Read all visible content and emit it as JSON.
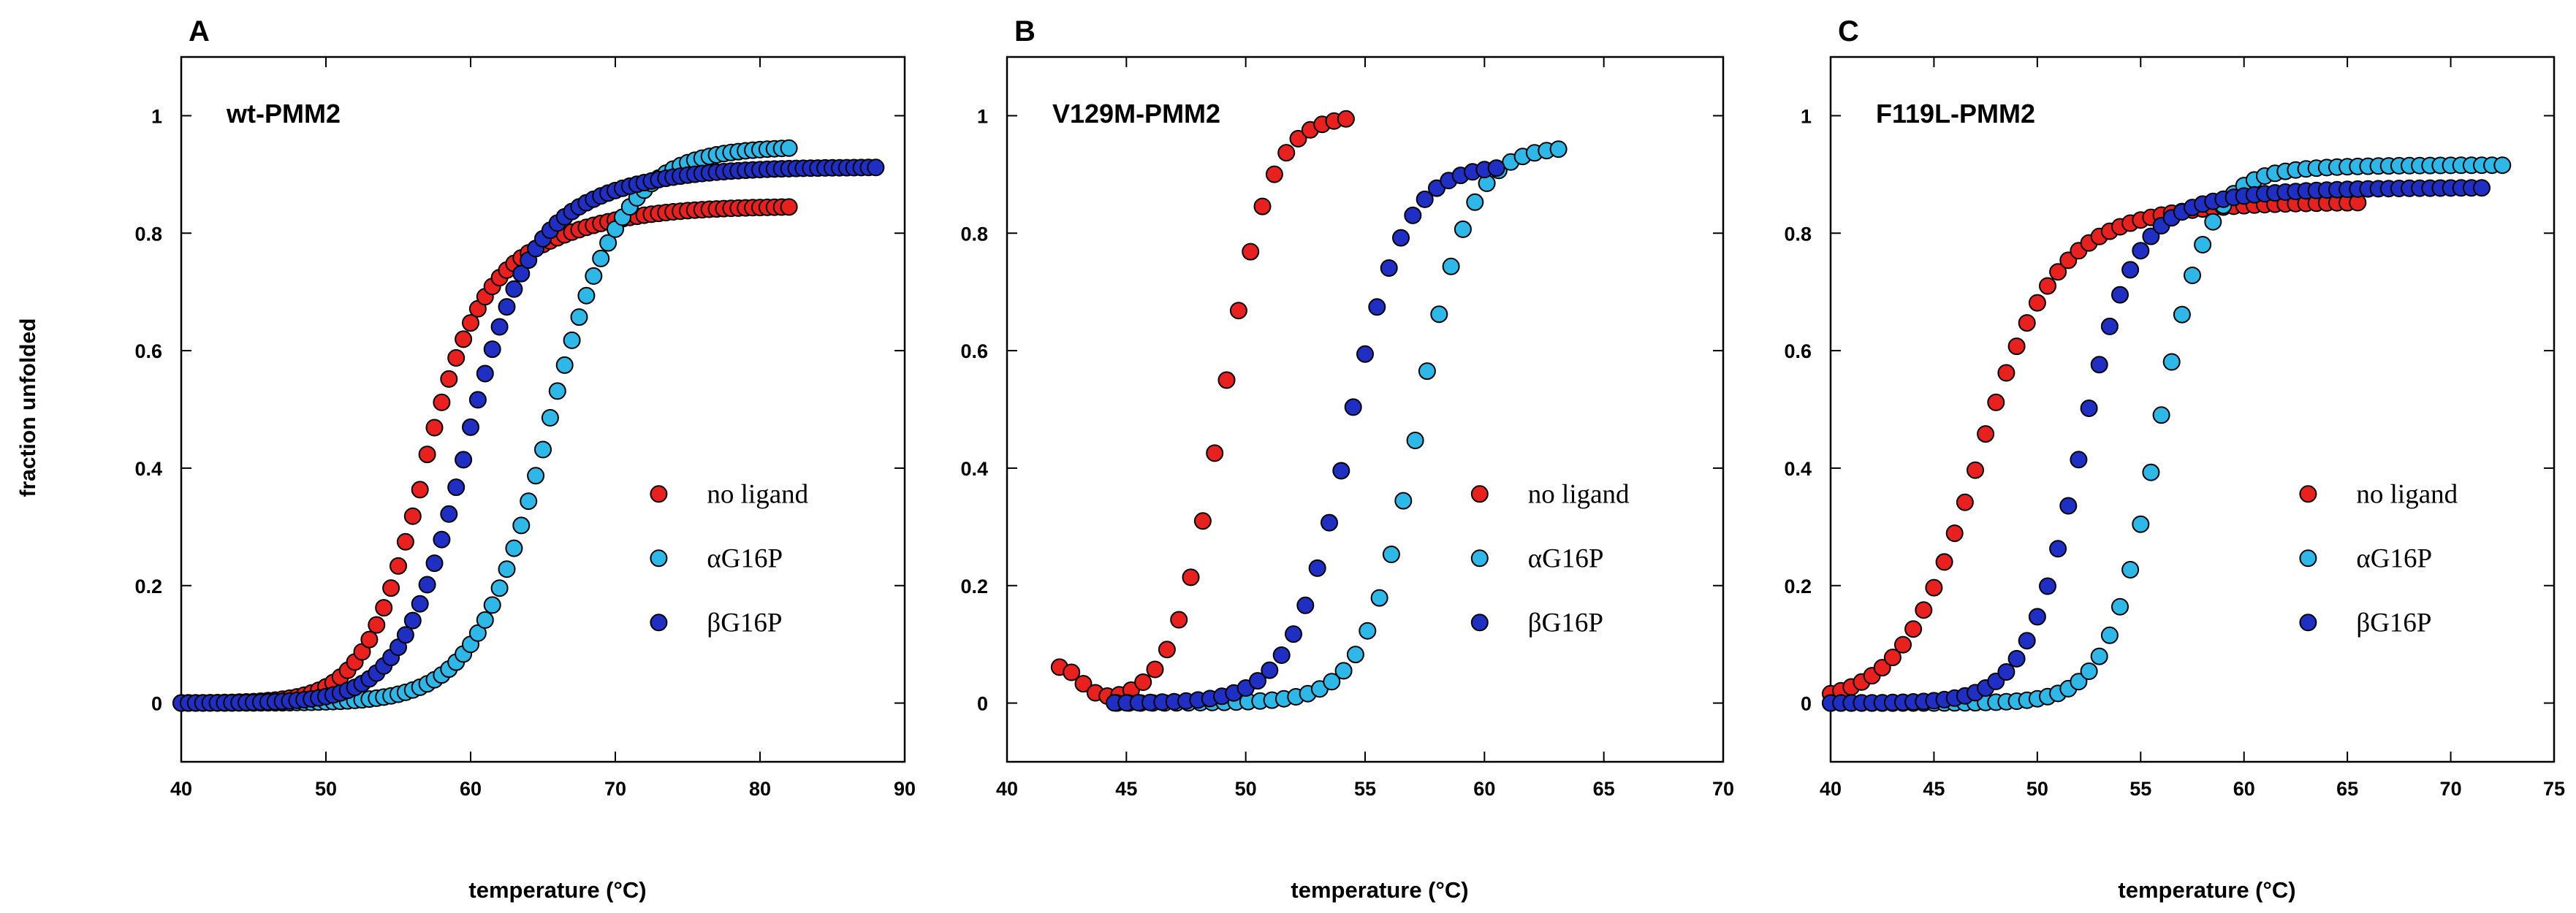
{
  "colors": {
    "no_ligand": "#e8201e",
    "aG16P": "#2eb8e8",
    "bG16P": "#1f2fc4",
    "frame": "#000000"
  },
  "shared": {
    "ylabel": "fraction unfolded",
    "xlabel": "temperature (°C)",
    "legend": [
      "no ligand",
      "αG16P",
      "βG16P"
    ]
  },
  "chart_data": [
    {
      "type": "scatter",
      "panel_letter": "A",
      "label": "wt-PMM2",
      "xlabel": "temperature (°C)",
      "ylabel": "fraction unfolded",
      "xlim": [
        40,
        90
      ],
      "ylim": [
        -0.1,
        1.1
      ],
      "xticks": [
        40,
        50,
        60,
        70,
        80,
        90
      ],
      "yticks": [
        0,
        0.2,
        0.4,
        0.6,
        0.8,
        1
      ],
      "legend_position": "bottom-right",
      "series": [
        {
          "name": "no ligand",
          "color_key": "no_ligand",
          "tm": 56.5,
          "w": 2.0,
          "floor": 0.0,
          "b1": 0.8,
          "a2": 0.45,
          "c2": 64.0,
          "w2": 4.0,
          "xstart": 40,
          "xend": 82,
          "step": 0.5,
          "lowmin": 44
        },
        {
          "name": "αG16P",
          "color_key": "aG16P",
          "tm": 65.2,
          "w": 2.5,
          "floor": 0.0,
          "b1": 0.3,
          "a2": 0.5,
          "c2": 70.0,
          "w2": 3.5,
          "xstart": 40,
          "xend": 82,
          "step": 0.5,
          "lowmin": 44
        },
        {
          "name": "βG16P",
          "color_key": "bG16P",
          "tm": 59.5,
          "w": 2.2,
          "floor": 0.0,
          "b1": 0.5,
          "a2": 0.5,
          "c2": 68.0,
          "w2": 4.0,
          "xstart": 40,
          "xend": 88,
          "step": 0.5,
          "lowmin": 44
        }
      ]
    },
    {
      "type": "scatter",
      "panel_letter": "B",
      "label": "V129M-PMM2",
      "xlabel": "temperature (°C)",
      "ylabel": "fraction unfolded",
      "xlim": [
        40,
        70
      ],
      "ylim": [
        -0.1,
        1.1
      ],
      "xticks": [
        40,
        45,
        50,
        55,
        60,
        65,
        70
      ],
      "yticks": [
        0,
        0.2,
        0.4,
        0.6,
        0.8,
        1
      ],
      "legend_position": "bottom-right",
      "series": [
        {
          "name": "no ligand",
          "color_key": "no_ligand",
          "tm": 49.0,
          "w": 1.0,
          "floor": 0.0,
          "b1": 0.0,
          "a2": 0.0,
          "c2": 50,
          "w2": 1,
          "xstart": 42.2,
          "xend": 54.2,
          "step": 0.5,
          "lowmin": 44,
          "dip": 0.06
        },
        {
          "name": "αG16P",
          "color_key": "aG16P",
          "tm": 57.2,
          "w": 1.1,
          "floor": 0.0,
          "b1": 0.2,
          "a2": 0.25,
          "c2": 52.0,
          "w2": 2.0,
          "xstart": 44.6,
          "xend": 63.2,
          "step": 0.5,
          "lowmin": 46
        },
        {
          "name": "βG16P",
          "color_key": "bG16P",
          "tm": 54.3,
          "w": 1.2,
          "floor": 0.0,
          "b1": 0.3,
          "a2": 0.2,
          "c2": 51.0,
          "w2": 1.5,
          "xstart": 44.5,
          "xend": 60.9,
          "step": 0.5,
          "lowmin": 46
        }
      ]
    },
    {
      "type": "scatter",
      "panel_letter": "C",
      "label": "F119L-PMM2",
      "xlabel": "temperature (°C)",
      "ylabel": "fraction unfolded",
      "xlim": [
        40,
        75
      ],
      "ylim": [
        -0.1,
        1.1
      ],
      "xticks": [
        40,
        45,
        50,
        55,
        60,
        65,
        70,
        75
      ],
      "yticks": [
        0,
        0.2,
        0.4,
        0.6,
        0.8,
        1
      ],
      "legend_position": "bottom-right",
      "series": [
        {
          "name": "no ligand",
          "color_key": "no_ligand",
          "tm": 47.0,
          "w": 1.8,
          "floor": 0.0,
          "b1": 0.6,
          "a2": 0.3,
          "c2": 53.0,
          "w2": 3.0,
          "xstart": 40,
          "xend": 65.5,
          "step": 0.5,
          "lowmin": 40
        },
        {
          "name": "αG16P",
          "color_key": "aG16P",
          "tm": 55.8,
          "w": 1.2,
          "floor": 0.0,
          "b1": 0.3,
          "a2": 0.2,
          "c2": 59.0,
          "w2": 3.0,
          "xstart": 40,
          "xend": 72.5,
          "step": 0.5,
          "lowmin": 40
        },
        {
          "name": "βG16P",
          "color_key": "bG16P",
          "tm": 52.0,
          "w": 1.3,
          "floor": 0.0,
          "b1": 0.5,
          "a2": 0.3,
          "c2": 56.5,
          "w2": 3.0,
          "xstart": 40,
          "xend": 71.5,
          "step": 0.5,
          "lowmin": 40
        }
      ]
    }
  ]
}
